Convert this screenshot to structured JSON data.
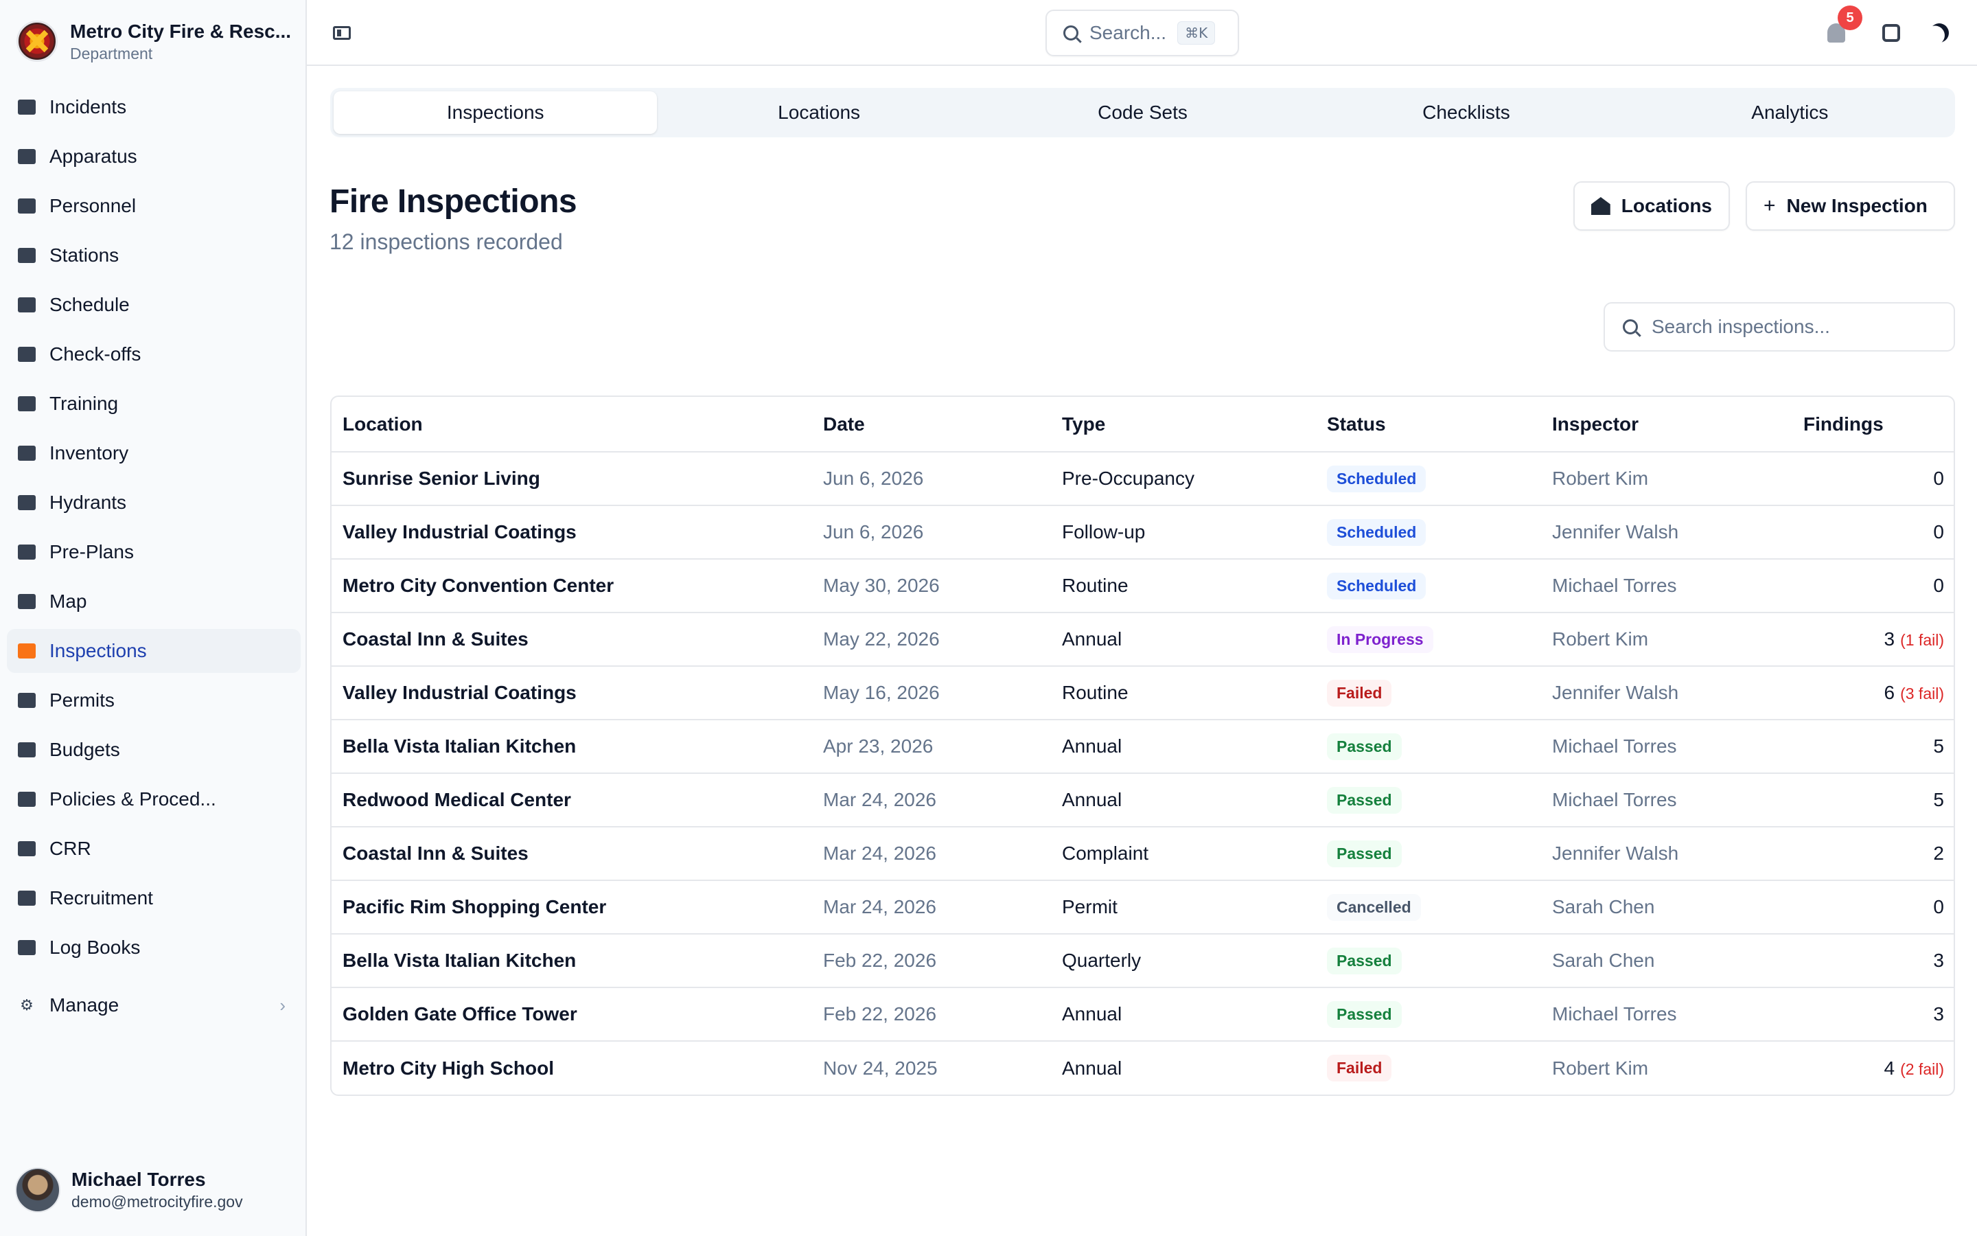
{
  "brand": {
    "title": "Metro City Fire & Resc...",
    "subtitle": "Department"
  },
  "sidebar": {
    "items": [
      {
        "label": "Incidents",
        "icon": "incidents-icon"
      },
      {
        "label": "Apparatus",
        "icon": "truck-icon"
      },
      {
        "label": "Personnel",
        "icon": "id-card-icon"
      },
      {
        "label": "Stations",
        "icon": "building-icon"
      },
      {
        "label": "Schedule",
        "icon": "calendar-icon"
      },
      {
        "label": "Check-offs",
        "icon": "clipboard-icon"
      },
      {
        "label": "Training",
        "icon": "graduation-cap-icon"
      },
      {
        "label": "Inventory",
        "icon": "wrench-icon"
      },
      {
        "label": "Hydrants",
        "icon": "hydrant-icon"
      },
      {
        "label": "Pre-Plans",
        "icon": "pre-plan-icon"
      },
      {
        "label": "Map",
        "icon": "map-icon"
      },
      {
        "label": "Inspections",
        "icon": "inspection-icon",
        "active": true
      },
      {
        "label": "Permits",
        "icon": "permit-icon"
      },
      {
        "label": "Budgets",
        "icon": "money-bag-icon"
      },
      {
        "label": "Policies & Proced...",
        "icon": "book-icon"
      },
      {
        "label": "CRR",
        "icon": "megaphone-icon"
      },
      {
        "label": "Recruitment",
        "icon": "handshake-icon"
      },
      {
        "label": "Log Books",
        "icon": "books-icon"
      }
    ],
    "manage_label": "Manage"
  },
  "user": {
    "name": "Michael Torres",
    "email": "demo@metrocityfire.gov"
  },
  "header": {
    "search_placeholder": "Search...",
    "shortcut": "⌘K",
    "notification_count": "5"
  },
  "tabs": [
    {
      "label": "Inspections",
      "active": true
    },
    {
      "label": "Locations"
    },
    {
      "label": "Code Sets"
    },
    {
      "label": "Checklists"
    },
    {
      "label": "Analytics"
    }
  ],
  "page": {
    "title": "Fire Inspections",
    "subtitle": "12 inspections recorded",
    "locations_button": "Locations",
    "new_button": "New Inspection",
    "search_placeholder": "Search inspections..."
  },
  "table": {
    "columns": [
      "Location",
      "Date",
      "Type",
      "Status",
      "Inspector",
      "Findings"
    ],
    "rows": [
      {
        "location": "Sunrise Senior Living",
        "date": "Jun 6, 2026",
        "type": "Pre-Occupancy",
        "status": "Scheduled",
        "inspector": "Robert Kim",
        "findings": "0",
        "fail": ""
      },
      {
        "location": "Valley Industrial Coatings",
        "date": "Jun 6, 2026",
        "type": "Follow-up",
        "status": "Scheduled",
        "inspector": "Jennifer Walsh",
        "findings": "0",
        "fail": ""
      },
      {
        "location": "Metro City Convention Center",
        "date": "May 30, 2026",
        "type": "Routine",
        "status": "Scheduled",
        "inspector": "Michael Torres",
        "findings": "0",
        "fail": ""
      },
      {
        "location": "Coastal Inn & Suites",
        "date": "May 22, 2026",
        "type": "Annual",
        "status": "In Progress",
        "inspector": "Robert Kim",
        "findings": "3",
        "fail": "(1 fail)"
      },
      {
        "location": "Valley Industrial Coatings",
        "date": "May 16, 2026",
        "type": "Routine",
        "status": "Failed",
        "inspector": "Jennifer Walsh",
        "findings": "6",
        "fail": "(3 fail)"
      },
      {
        "location": "Bella Vista Italian Kitchen",
        "date": "Apr 23, 2026",
        "type": "Annual",
        "status": "Passed",
        "inspector": "Michael Torres",
        "findings": "5",
        "fail": ""
      },
      {
        "location": "Redwood Medical Center",
        "date": "Mar 24, 2026",
        "type": "Annual",
        "status": "Passed",
        "inspector": "Michael Torres",
        "findings": "5",
        "fail": ""
      },
      {
        "location": "Coastal Inn & Suites",
        "date": "Mar 24, 2026",
        "type": "Complaint",
        "status": "Passed",
        "inspector": "Jennifer Walsh",
        "findings": "2",
        "fail": ""
      },
      {
        "location": "Pacific Rim Shopping Center",
        "date": "Mar 24, 2026",
        "type": "Permit",
        "status": "Cancelled",
        "inspector": "Sarah Chen",
        "findings": "0",
        "fail": ""
      },
      {
        "location": "Bella Vista Italian Kitchen",
        "date": "Feb 22, 2026",
        "type": "Quarterly",
        "status": "Passed",
        "inspector": "Sarah Chen",
        "findings": "3",
        "fail": ""
      },
      {
        "location": "Golden Gate Office Tower",
        "date": "Feb 22, 2026",
        "type": "Annual",
        "status": "Passed",
        "inspector": "Michael Torres",
        "findings": "3",
        "fail": ""
      },
      {
        "location": "Metro City High School",
        "date": "Nov 24, 2025",
        "type": "Annual",
        "status": "Failed",
        "inspector": "Robert Kim",
        "findings": "4",
        "fail": "(2 fail)"
      }
    ]
  },
  "colors": {
    "scheduled": "#1d4ed8",
    "in_progress": "#7e22ce",
    "failed": "#b91c1c",
    "passed": "#15803d",
    "cancelled": "#475569",
    "active_nav_icon": "#f97316",
    "badge": "#ef4444"
  }
}
